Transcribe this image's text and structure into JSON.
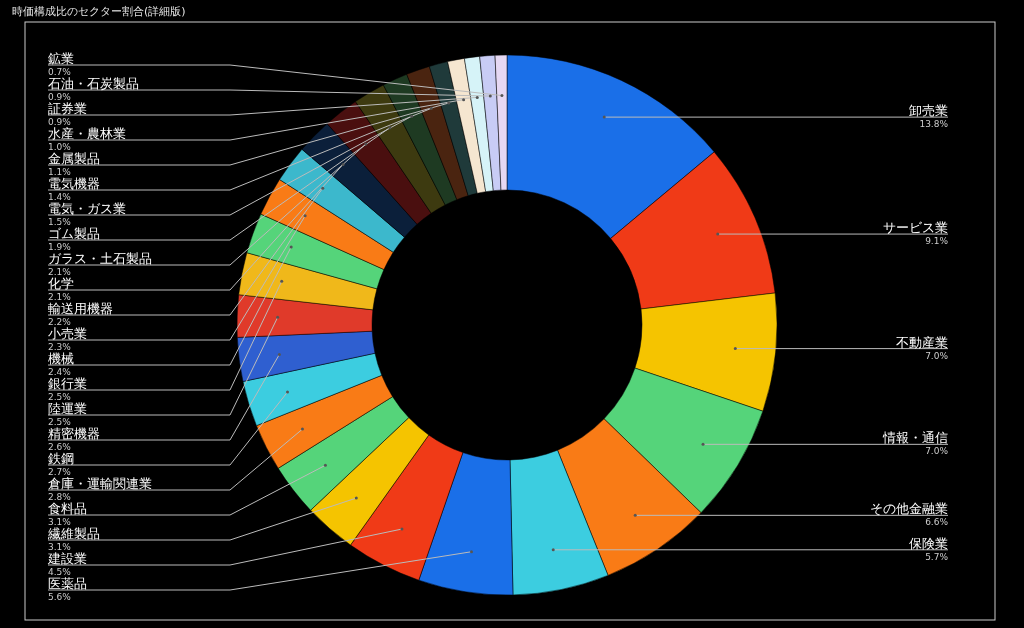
{
  "chart_data": {
    "type": "donut",
    "title": "時価構成比のセクター割合(詳細版)",
    "categories": [
      "卸売業",
      "サービス業",
      "不動産業",
      "情報・通信",
      "その他金融業",
      "保険業",
      "医薬品",
      "建設業",
      "繊維製品",
      "食料品",
      "倉庫・運輸関連業",
      "鉄鋼",
      "精密機器",
      "陸運業",
      "銀行業",
      "機械",
      "小売業",
      "輸送用機器",
      "化学",
      "ガラス・土石製品",
      "ゴム製品",
      "電気・ガス業",
      "電気機器",
      "金属製品",
      "水産・農林業",
      "証券業",
      "石油・石炭製品",
      "鉱業"
    ],
    "values": [
      13.8,
      9.1,
      7.0,
      7.0,
      6.6,
      5.7,
      5.6,
      4.5,
      3.1,
      3.1,
      2.8,
      2.7,
      2.6,
      2.5,
      2.5,
      2.4,
      2.3,
      2.2,
      2.1,
      2.1,
      1.9,
      1.5,
      1.4,
      1.1,
      1.0,
      0.9,
      0.9,
      0.7
    ],
    "value_labels": [
      "13.8%",
      "9.1%",
      "7.0%",
      "7.0%",
      "6.6%",
      "5.7%",
      "5.6%",
      "4.5%",
      "3.1%",
      "3.1%",
      "2.8%",
      "2.7%",
      "2.6%",
      "2.5%",
      "2.5%",
      "2.4%",
      "2.3%",
      "2.2%",
      "2.1%",
      "2.1%",
      "1.9%",
      "1.5%",
      "1.4%",
      "1.1%",
      "1.0%",
      "0.9%",
      "0.9%",
      "0.7%"
    ],
    "colors": [
      "#1a6fe8",
      "#f03a17",
      "#f5c400",
      "#55d47a",
      "#f97b16",
      "#3ccde0",
      "#1a6fe8",
      "#f03a17",
      "#f5c400",
      "#55d47a",
      "#f97b16",
      "#3ccde0",
      "#2f5fd0",
      "#e03a2a",
      "#f0b81a",
      "#55d47a",
      "#f97b16",
      "#3cb8cc",
      "#0b1f3a",
      "#4a0f0f",
      "#3d3a10",
      "#1e3a22",
      "#4a2410",
      "#1f3a3a",
      "#f5e6d0",
      "#d6f3f8",
      "#c8ccf5",
      "#e6d8f3"
    ]
  }
}
